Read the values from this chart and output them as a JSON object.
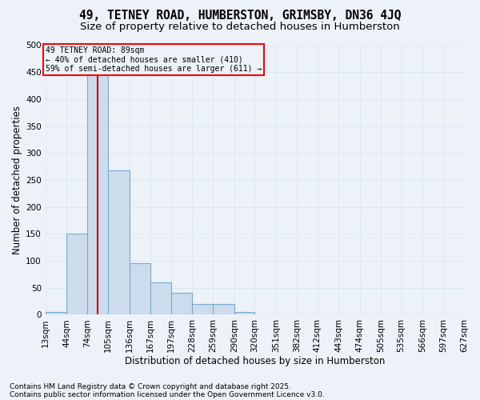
{
  "title1": "49, TETNEY ROAD, HUMBERSTON, GRIMSBY, DN36 4JQ",
  "title2": "Size of property relative to detached houses in Humberston",
  "xlabel": "Distribution of detached houses by size in Humberston",
  "ylabel": "Number of detached properties",
  "footer1": "Contains HM Land Registry data © Crown copyright and database right 2025.",
  "footer2": "Contains public sector information licensed under the Open Government Licence v3.0.",
  "annotation_line1": "49 TETNEY ROAD: 89sqm",
  "annotation_line2": "← 40% of detached houses are smaller (410)",
  "annotation_line3": "59% of semi-detached houses are larger (611) →",
  "bar_color": "#ccdcec",
  "bar_edge_color": "#7aa8cc",
  "red_line_x": 89,
  "bins": [
    13,
    44,
    74,
    105,
    136,
    167,
    197,
    228,
    259,
    290,
    320,
    351,
    382,
    412,
    443,
    474,
    505,
    535,
    566,
    597,
    627
  ],
  "counts": [
    5,
    150,
    460,
    268,
    95,
    60,
    40,
    20,
    20,
    5,
    0,
    0,
    0,
    0,
    0,
    0,
    0,
    0,
    0,
    0
  ],
  "ylim": [
    0,
    500
  ],
  "yticks": [
    0,
    50,
    100,
    150,
    200,
    250,
    300,
    350,
    400,
    450,
    500
  ],
  "bg_color": "#edf2f9",
  "grid_color": "#dde8f5",
  "title_fontsize": 10.5,
  "subtitle_fontsize": 9.5,
  "axis_label_fontsize": 8.5,
  "tick_fontsize": 7.5,
  "footer_fontsize": 6.5
}
